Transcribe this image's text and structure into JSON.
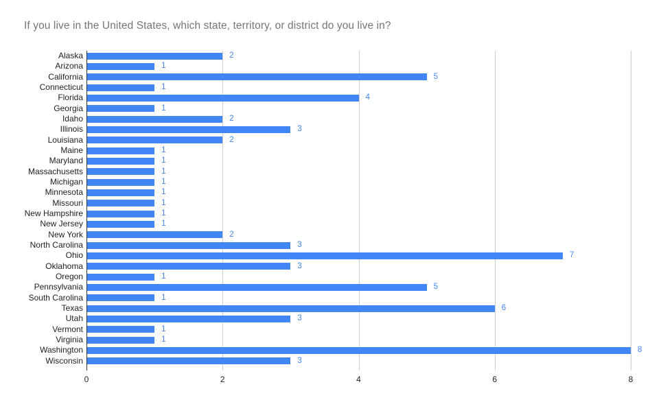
{
  "title": "If you live in the United States, which state, territory, or district do you live in?",
  "chart_data": {
    "type": "bar",
    "orientation": "horizontal",
    "title": "If you live in the United States, which state, territory, or district do you live in?",
    "categories": [
      "Alaska",
      "Arizona",
      "California",
      "Connecticut",
      "Florida",
      "Georgia",
      "Idaho",
      "Illinois",
      "Louisiana",
      "Maine",
      "Maryland",
      "Massachusetts",
      "Michigan",
      "Minnesota",
      "Missouri",
      "New Hampshire",
      "New Jersey",
      "New York",
      "North Carolina",
      "Ohio",
      "Oklahoma",
      "Oregon",
      "Pennsylvania",
      "South Carolina",
      "Texas",
      "Utah",
      "Vermont",
      "Virginia",
      "Washington",
      "Wisconsin"
    ],
    "values": [
      2,
      1,
      5,
      1,
      4,
      1,
      2,
      3,
      2,
      1,
      1,
      1,
      1,
      1,
      1,
      1,
      1,
      2,
      3,
      7,
      3,
      1,
      5,
      1,
      6,
      3,
      1,
      1,
      8,
      3
    ],
    "xlabel": "",
    "ylabel": "",
    "xlim": [
      0,
      8
    ],
    "xticks": [
      0,
      2,
      4,
      6,
      8
    ],
    "value_labels_shown": true,
    "legend": "none",
    "grid": "vertical-gridlines",
    "colors": {
      "bar": "#4285f4",
      "value_label": "#4285f4",
      "title": "#757575",
      "category_label": "#212121",
      "tick_label": "#212121",
      "gridline": "#cccccc",
      "axis_line": "#333333",
      "background": "#ffffff"
    }
  }
}
